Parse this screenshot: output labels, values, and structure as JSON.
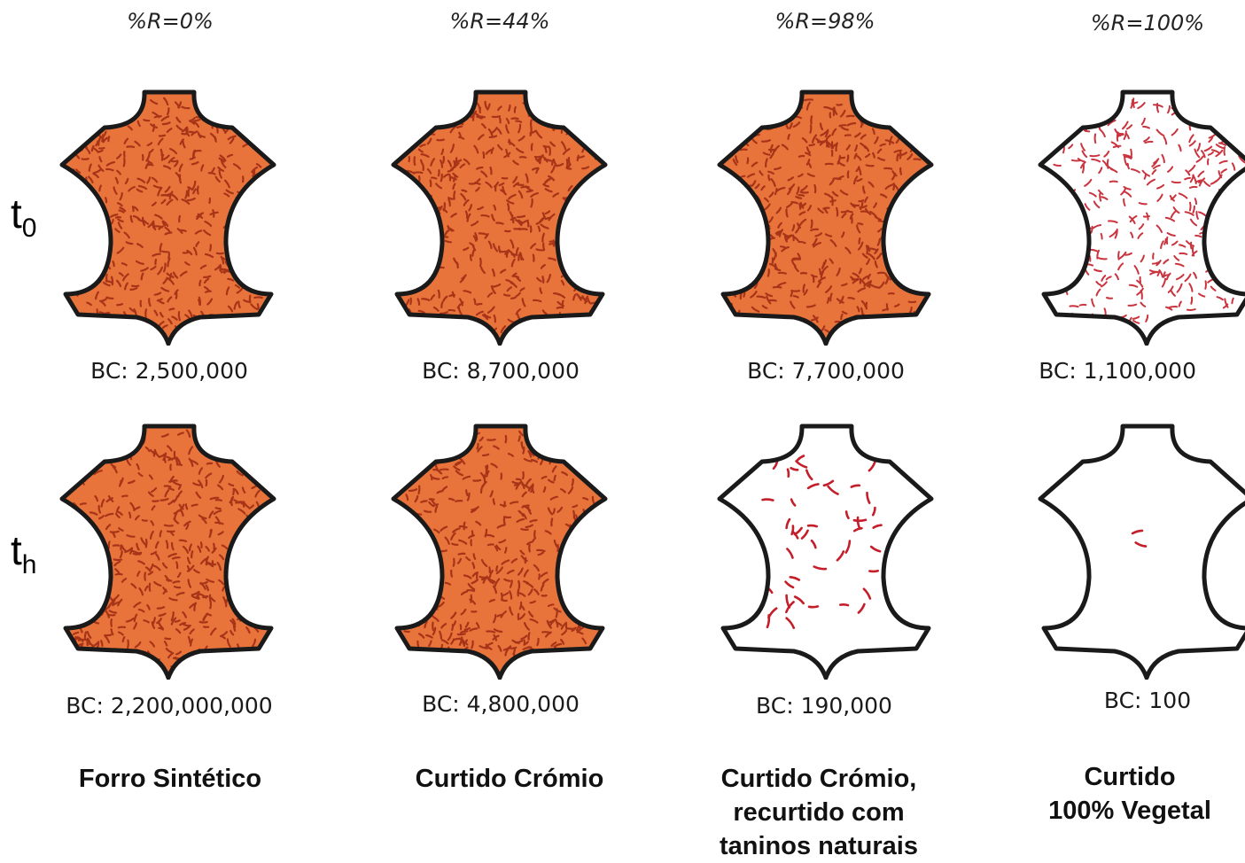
{
  "rows": [
    {
      "label": "t",
      "subscript": "0"
    },
    {
      "label": "t",
      "subscript": "h"
    }
  ],
  "columns": [
    {
      "header": "%R=0%",
      "caption": [
        "Forro Sintético"
      ],
      "bc_t0": "BC: 2,500,000",
      "bc_th": "BC: 2,200,000,000",
      "t0_contamination": "dense",
      "th_contamination": "dense"
    },
    {
      "header": "%R=44%",
      "caption": [
        "Curtido Crómio"
      ],
      "bc_t0": "BC: 8,700,000",
      "bc_th": "BC: 4,800,000",
      "t0_contamination": "dense",
      "th_contamination": "dense"
    },
    {
      "header": "%R=98%",
      "caption": [
        "Curtido Crómio,",
        "recurtido com",
        "taninos naturais"
      ],
      "bc_t0": "BC: 7,700,000",
      "bc_th": "BC: 190,000",
      "t0_contamination": "dense",
      "th_contamination": "sparse"
    },
    {
      "header": "%R=100%",
      "caption": [
        "Curtido",
        "100% Vegetal"
      ],
      "bc_t0": "BC: 1,100,000",
      "bc_th": "BC: 100",
      "t0_contamination": "light",
      "th_contamination": "trace"
    }
  ],
  "colors": {
    "leather_orange": "#e8743c",
    "bacteria_dark": "#9c2a12",
    "bacteria_red": "#c41e2a",
    "outline": "#1a1a1a"
  }
}
